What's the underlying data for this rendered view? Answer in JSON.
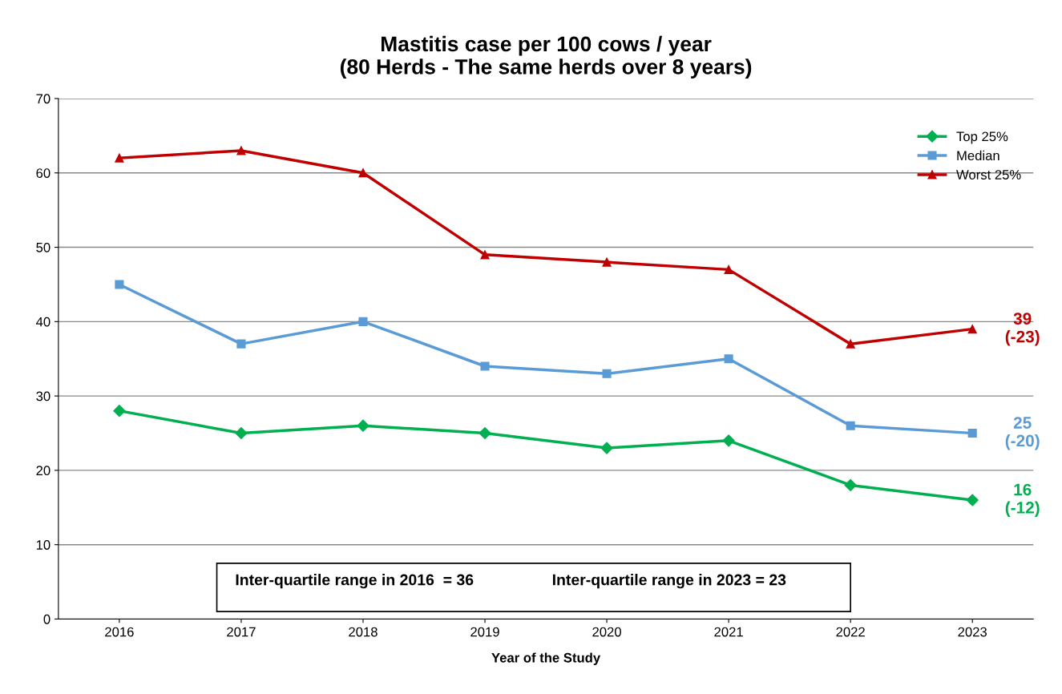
{
  "chart_data": {
    "type": "line",
    "title": "Mastitis case per 100 cows / year\n(80 Herds - The same herds over 8 years)",
    "xlabel": "Year of the Study",
    "categories": [
      "2016",
      "2017",
      "2018",
      "2019",
      "2020",
      "2021",
      "2022",
      "2023"
    ],
    "series": [
      {
        "name": "Top 25%",
        "color": "#00b050",
        "marker": "diamond",
        "values": [
          28,
          25,
          26,
          25,
          23,
          24,
          18,
          16
        ]
      },
      {
        "name": "Median",
        "color": "#5b9bd5",
        "marker": "square",
        "values": [
          45,
          37,
          40,
          34,
          33,
          35,
          26,
          25
        ]
      },
      {
        "name": "Worst 25%",
        "color": "#c00000",
        "marker": "triangle",
        "values": [
          62,
          63,
          60,
          49,
          48,
          47,
          37,
          39
        ]
      }
    ],
    "ylim": [
      0,
      70
    ],
    "yticks": [
      0,
      10,
      20,
      30,
      40,
      50,
      60,
      70
    ],
    "grid": "y",
    "legend": "top right",
    "annotations": [
      {
        "text": "16\n(-12)",
        "x": "2023",
        "y": 16
      },
      {
        "text": "25\n(-20)",
        "x": "2023",
        "y": 25
      },
      {
        "text": "39\n(-23)",
        "x": "2023",
        "y": 39
      },
      "Inter-quartile range in 2016  = 36",
      "Inter-quartile range in 2023 = 23"
    ]
  }
}
